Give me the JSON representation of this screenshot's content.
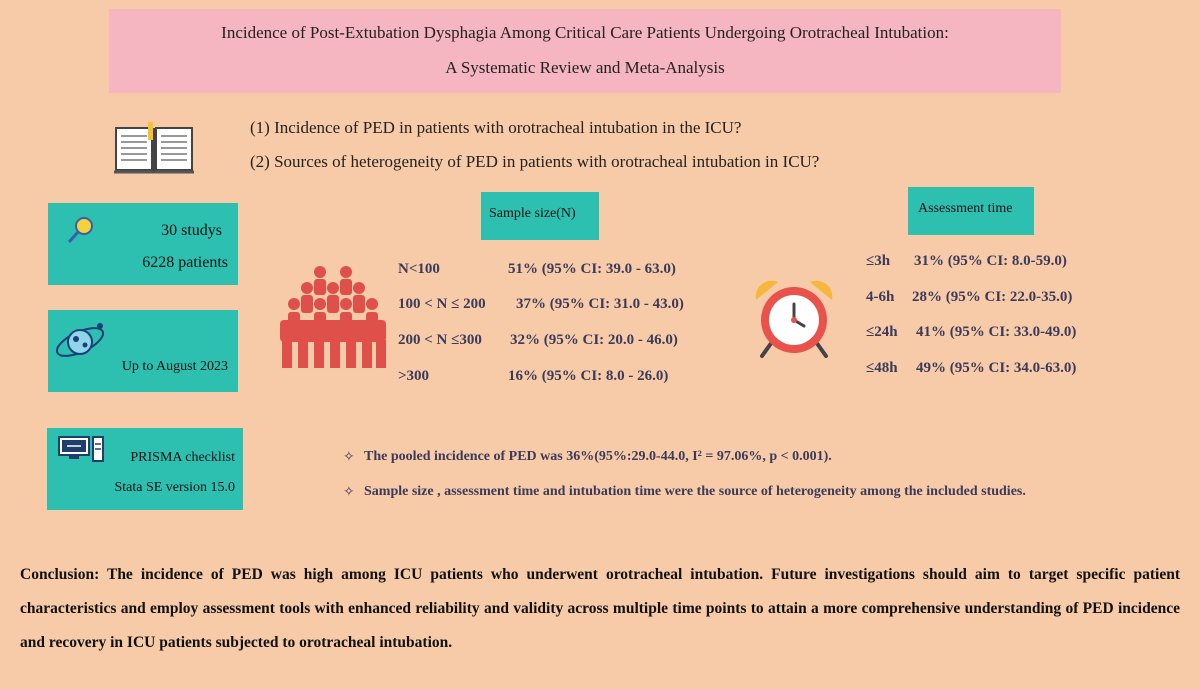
{
  "title": {
    "line1": "Incidence of Post-Extubation Dysphagia Among Critical Care Patients Undergoing Orotracheal Intubation:",
    "line2": "A Systematic Review and Meta-Analysis"
  },
  "questions": [
    "(1)  Incidence of PED in patients with orotracheal intubation in the ICU?",
    "(2)  Sources of heterogeneity of PED in patients with orotracheal intubation in ICU?"
  ],
  "studies_box": {
    "studies": "30 studys",
    "patients": "6228 patients"
  },
  "date_box": {
    "text": "Up to August 2023"
  },
  "tools_box": {
    "line1": "PRISMA checklist",
    "line2": "Stata SE version 15.0"
  },
  "sample_size": {
    "header": "Sample size(N)",
    "rows": [
      {
        "label": "N<100",
        "value": "51% (95% CI: 39.0 - 63.0)"
      },
      {
        "label": "100 < N ≤ 200",
        "value": "37% (95% CI: 31.0 - 43.0)"
      },
      {
        "label": "200 < N ≤300",
        "value": "32% (95% CI: 20.0 - 46.0)"
      },
      {
        "label": ">300",
        "value": "16% (95% CI: 8.0 - 26.0)"
      }
    ]
  },
  "assessment_time": {
    "header": "Assessment time",
    "rows": [
      {
        "label": "≤3h",
        "value": "31% (95% CI: 8.0-59.0)"
      },
      {
        "label": "4-6h",
        "value": "28% (95% CI: 22.0-35.0)"
      },
      {
        "label": "≤24h",
        "value": "41% (95% CI: 33.0-49.0)"
      },
      {
        "label": "≤48h",
        "value": "49% (95% CI: 34.0-63.0)"
      }
    ]
  },
  "findings": [
    "The pooled incidence of PED was 36%(95%:29.0-44.0,   I² = 97.06%, p < 0.001).",
    "Sample size , assessment time and intubation time were the source of heterogeneity among the included studies."
  ],
  "conclusion": "Conclusion: The incidence of PED was high among ICU patients who underwent orotracheal intubation. Future investigations should aim to target specific patient characteristics and employ assessment tools with enhanced reliability and validity across multiple time points to attain a more comprehensive understanding of PED incidence and recovery in ICU patients subjected to orotracheal intubation.",
  "colors": {
    "background": "#f8cba8",
    "title_bg": "#f6b6c1",
    "teal": "#2dc0b0",
    "people_red": "#e0504a",
    "clock_red": "#e8524a",
    "clock_bells": "#f5b83d"
  },
  "icons": [
    "book-icon",
    "magnifier-icon",
    "planet-icon",
    "computer-icon",
    "people-icon",
    "alarm-clock-icon",
    "diamond-bullet-icon"
  ]
}
